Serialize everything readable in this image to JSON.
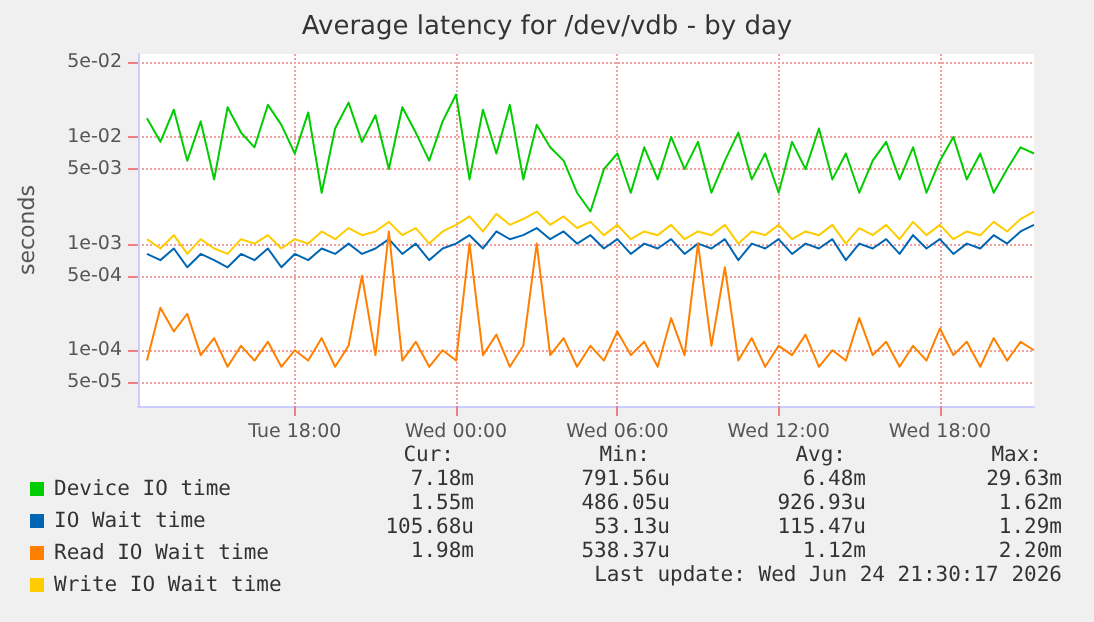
{
  "chart_data": {
    "type": "line",
    "title": "Average latency for /dev/vdb - by day",
    "ylabel": "seconds",
    "log": "y",
    "grid": true,
    "legend": "bottom left",
    "marker": "none",
    "line_style": "solid",
    "xlim": [
      "2026-06-23T12:10",
      "2026-06-24T21:30"
    ],
    "xticks": [
      {
        "value": "2026-06-23T18:00",
        "label": "Tue 18:00"
      },
      {
        "value": "2026-06-24T00:00",
        "label": "Wed 00:00"
      },
      {
        "value": "2026-06-24T06:00",
        "label": "Wed 06:00"
      },
      {
        "value": "2026-06-24T12:00",
        "label": "Wed 12:00"
      },
      {
        "value": "2026-06-24T18:00",
        "label": "Wed 18:00"
      }
    ],
    "ylim": [
      3e-05,
      0.06
    ],
    "yticks": [
      {
        "value": 5e-05,
        "label": "5e-05"
      },
      {
        "value": 0.0001,
        "label": "1e-04"
      },
      {
        "value": 0.0005,
        "label": "5e-04"
      },
      {
        "value": 0.001,
        "label": "1e-03"
      },
      {
        "value": 0.005,
        "label": "5e-03"
      },
      {
        "value": 0.01,
        "label": "1e-02"
      },
      {
        "value": 0.05,
        "label": "5e-02"
      }
    ],
    "x": [
      "2026-06-23T12:30",
      "2026-06-23T13:00",
      "2026-06-23T13:30",
      "2026-06-23T14:00",
      "2026-06-23T14:30",
      "2026-06-23T15:00",
      "2026-06-23T15:30",
      "2026-06-23T16:00",
      "2026-06-23T16:30",
      "2026-06-23T17:00",
      "2026-06-23T17:30",
      "2026-06-23T18:00",
      "2026-06-23T18:30",
      "2026-06-23T19:00",
      "2026-06-23T19:30",
      "2026-06-23T20:00",
      "2026-06-23T20:30",
      "2026-06-23T21:00",
      "2026-06-23T21:30",
      "2026-06-23T22:00",
      "2026-06-23T22:30",
      "2026-06-23T23:00",
      "2026-06-23T23:30",
      "2026-06-24T00:00",
      "2026-06-24T00:30",
      "2026-06-24T01:00",
      "2026-06-24T01:30",
      "2026-06-24T02:00",
      "2026-06-24T02:30",
      "2026-06-24T03:00",
      "2026-06-24T03:30",
      "2026-06-24T04:00",
      "2026-06-24T04:30",
      "2026-06-24T05:00",
      "2026-06-24T05:30",
      "2026-06-24T06:00",
      "2026-06-24T06:30",
      "2026-06-24T07:00",
      "2026-06-24T07:30",
      "2026-06-24T08:00",
      "2026-06-24T08:30",
      "2026-06-24T09:00",
      "2026-06-24T09:30",
      "2026-06-24T10:00",
      "2026-06-24T10:30",
      "2026-06-24T11:00",
      "2026-06-24T11:30",
      "2026-06-24T12:00",
      "2026-06-24T12:30",
      "2026-06-24T13:00",
      "2026-06-24T13:30",
      "2026-06-24T14:00",
      "2026-06-24T14:30",
      "2026-06-24T15:00",
      "2026-06-24T15:30",
      "2026-06-24T16:00",
      "2026-06-24T16:30",
      "2026-06-24T17:00",
      "2026-06-24T17:30",
      "2026-06-24T18:00",
      "2026-06-24T18:30",
      "2026-06-24T19:00",
      "2026-06-24T19:30",
      "2026-06-24T20:00",
      "2026-06-24T20:30",
      "2026-06-24T21:00",
      "2026-06-24T21:30"
    ],
    "series": [
      {
        "name": "Device IO time",
        "color": "#00cc00",
        "values": [
          0.015,
          0.009,
          0.018,
          0.006,
          0.014,
          0.004,
          0.019,
          0.011,
          0.008,
          0.02,
          0.013,
          0.007,
          0.017,
          0.003,
          0.012,
          0.021,
          0.009,
          0.016,
          0.005,
          0.019,
          0.011,
          0.006,
          0.014,
          0.025,
          0.004,
          0.018,
          0.007,
          0.02,
          0.004,
          0.013,
          0.008,
          0.006,
          0.003,
          0.002,
          0.005,
          0.007,
          0.003,
          0.008,
          0.004,
          0.01,
          0.005,
          0.009,
          0.003,
          0.006,
          0.011,
          0.004,
          0.007,
          0.003,
          0.009,
          0.005,
          0.012,
          0.004,
          0.007,
          0.003,
          0.006,
          0.009,
          0.004,
          0.008,
          0.003,
          0.006,
          0.01,
          0.004,
          0.007,
          0.003,
          0.005,
          0.008,
          0.007
        ]
      },
      {
        "name": "IO Wait time",
        "color": "#0066b3",
        "values": [
          0.0008,
          0.0007,
          0.0009,
          0.0006,
          0.0008,
          0.0007,
          0.0006,
          0.0008,
          0.0007,
          0.0009,
          0.0006,
          0.0008,
          0.0007,
          0.0009,
          0.0008,
          0.001,
          0.0008,
          0.0009,
          0.0011,
          0.0008,
          0.001,
          0.0007,
          0.0009,
          0.001,
          0.0012,
          0.0009,
          0.0013,
          0.0011,
          0.0012,
          0.0014,
          0.0011,
          0.0013,
          0.001,
          0.0012,
          0.0009,
          0.0011,
          0.0008,
          0.001,
          0.0009,
          0.0011,
          0.0008,
          0.001,
          0.0009,
          0.0011,
          0.0007,
          0.001,
          0.0009,
          0.0011,
          0.0008,
          0.001,
          0.0009,
          0.0011,
          0.0007,
          0.001,
          0.0009,
          0.0011,
          0.0008,
          0.0012,
          0.0009,
          0.0011,
          0.0008,
          0.001,
          0.0009,
          0.0012,
          0.001,
          0.0013,
          0.0015
        ]
      },
      {
        "name": "Read IO Wait time",
        "color": "#ff8000",
        "values": [
          8e-05,
          0.00025,
          0.00015,
          0.00022,
          9e-05,
          0.00013,
          7e-05,
          0.00011,
          8e-05,
          0.00012,
          7e-05,
          0.0001,
          8e-05,
          0.00013,
          7e-05,
          0.00011,
          0.0005,
          9e-05,
          0.0013,
          8e-05,
          0.00012,
          7e-05,
          0.0001,
          8e-05,
          0.001,
          9e-05,
          0.00014,
          7e-05,
          0.00011,
          0.001,
          9e-05,
          0.00013,
          7e-05,
          0.00011,
          8e-05,
          0.00015,
          9e-05,
          0.00012,
          7e-05,
          0.0002,
          9e-05,
          0.001,
          0.00011,
          0.0006,
          8e-05,
          0.00013,
          7e-05,
          0.00011,
          9e-05,
          0.00014,
          7e-05,
          0.0001,
          8e-05,
          0.0002,
          9e-05,
          0.00012,
          7e-05,
          0.00011,
          8e-05,
          0.00016,
          9e-05,
          0.00012,
          7e-05,
          0.00013,
          8e-05,
          0.00012,
          0.0001
        ]
      },
      {
        "name": "Write IO Wait time",
        "color": "#ffcc00",
        "values": [
          0.0011,
          0.0009,
          0.0012,
          0.0008,
          0.0011,
          0.0009,
          0.0008,
          0.0011,
          0.001,
          0.0012,
          0.0009,
          0.0011,
          0.001,
          0.0013,
          0.0011,
          0.0014,
          0.0012,
          0.0013,
          0.0016,
          0.0012,
          0.0014,
          0.001,
          0.0013,
          0.0015,
          0.0018,
          0.0013,
          0.0019,
          0.0015,
          0.0017,
          0.002,
          0.0015,
          0.0018,
          0.0014,
          0.0016,
          0.0012,
          0.0015,
          0.0011,
          0.0013,
          0.0012,
          0.0015,
          0.0011,
          0.0013,
          0.0012,
          0.0015,
          0.001,
          0.0013,
          0.0012,
          0.0015,
          0.0011,
          0.0013,
          0.0012,
          0.0015,
          0.001,
          0.0014,
          0.0012,
          0.0015,
          0.0011,
          0.0016,
          0.0012,
          0.0015,
          0.0011,
          0.0013,
          0.0012,
          0.0016,
          0.0013,
          0.0017,
          0.002
        ]
      }
    ],
    "annotations": [
      "Cur:",
      "Min:",
      "Avg:",
      "Max:",
      "7.18m",
      "791.56u",
      "6.48m",
      "29.63m",
      "1.55m",
      "486.05u",
      "926.93u",
      "1.62m",
      "105.68u",
      "53.13u",
      "115.47u",
      "1.29m",
      "1.98m",
      "538.37u",
      "1.12m",
      "2.20m",
      "Last update: Wed Jun 24 21:30:17 2026"
    ]
  }
}
